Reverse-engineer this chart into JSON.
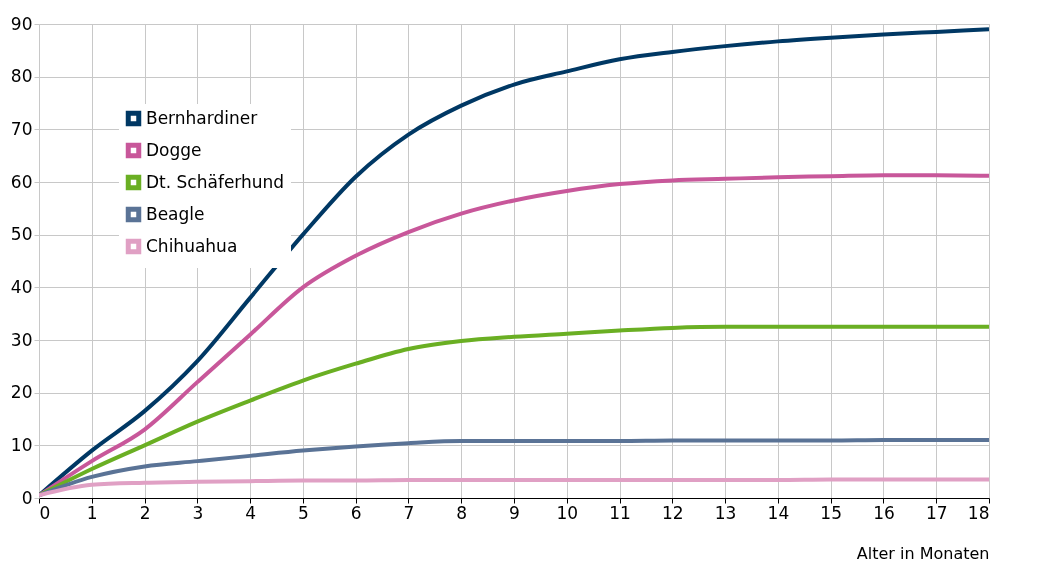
{
  "chart_data": {
    "type": "line",
    "xlabel": "Alter in Monaten",
    "x": [
      0,
      1,
      2,
      3,
      4,
      5,
      6,
      7,
      8,
      9,
      10,
      11,
      12,
      13,
      14,
      15,
      16,
      17,
      18
    ],
    "series": [
      {
        "name": "Bernhardiner",
        "color": "#003864",
        "values": [
          0.5,
          9,
          16.5,
          26,
          38,
          50,
          61,
          69,
          74.5,
          78.5,
          81,
          83.3,
          84.7,
          85.8,
          86.7,
          87.4,
          88,
          88.5,
          89
        ]
      },
      {
        "name": "Dogge",
        "color": "#c8579a",
        "values": [
          0.5,
          7,
          13,
          22,
          31,
          40,
          46,
          50.5,
          54,
          56.5,
          58.3,
          59.6,
          60.3,
          60.6,
          60.9,
          61.1,
          61.3,
          61.3,
          61.2
        ]
      },
      {
        "name": "Dt. Schäferhund",
        "color": "#6aaf23",
        "values": [
          0.5,
          5.5,
          10,
          14.5,
          18.5,
          22.3,
          25.5,
          28.3,
          29.8,
          30.6,
          31.2,
          31.8,
          32.3,
          32.5,
          32.5,
          32.5,
          32.5,
          32.5,
          32.5
        ]
      },
      {
        "name": "Beagle",
        "color": "#5a7396",
        "values": [
          0.5,
          4,
          6,
          7,
          8,
          9,
          9.8,
          10.4,
          10.8,
          10.8,
          10.8,
          10.8,
          10.9,
          10.9,
          10.9,
          10.9,
          11,
          11,
          11
        ]
      },
      {
        "name": "Chihuahua",
        "color": "#e0a0c4",
        "values": [
          0.5,
          2.5,
          2.9,
          3.1,
          3.2,
          3.3,
          3.3,
          3.4,
          3.4,
          3.4,
          3.4,
          3.4,
          3.4,
          3.4,
          3.4,
          3.5,
          3.5,
          3.5,
          3.5
        ]
      }
    ],
    "xlim": [
      0,
      18
    ],
    "xticks": [
      0,
      1,
      2,
      3,
      4,
      5,
      6,
      7,
      8,
      9,
      10,
      11,
      12,
      13,
      14,
      15,
      16,
      17,
      18
    ],
    "ylim": [
      0,
      90
    ],
    "yticks": [
      0,
      10,
      20,
      30,
      40,
      50,
      60,
      70,
      80,
      90
    ],
    "grid": true,
    "legend": "top left",
    "line_style": "solid",
    "marker": "none"
  }
}
